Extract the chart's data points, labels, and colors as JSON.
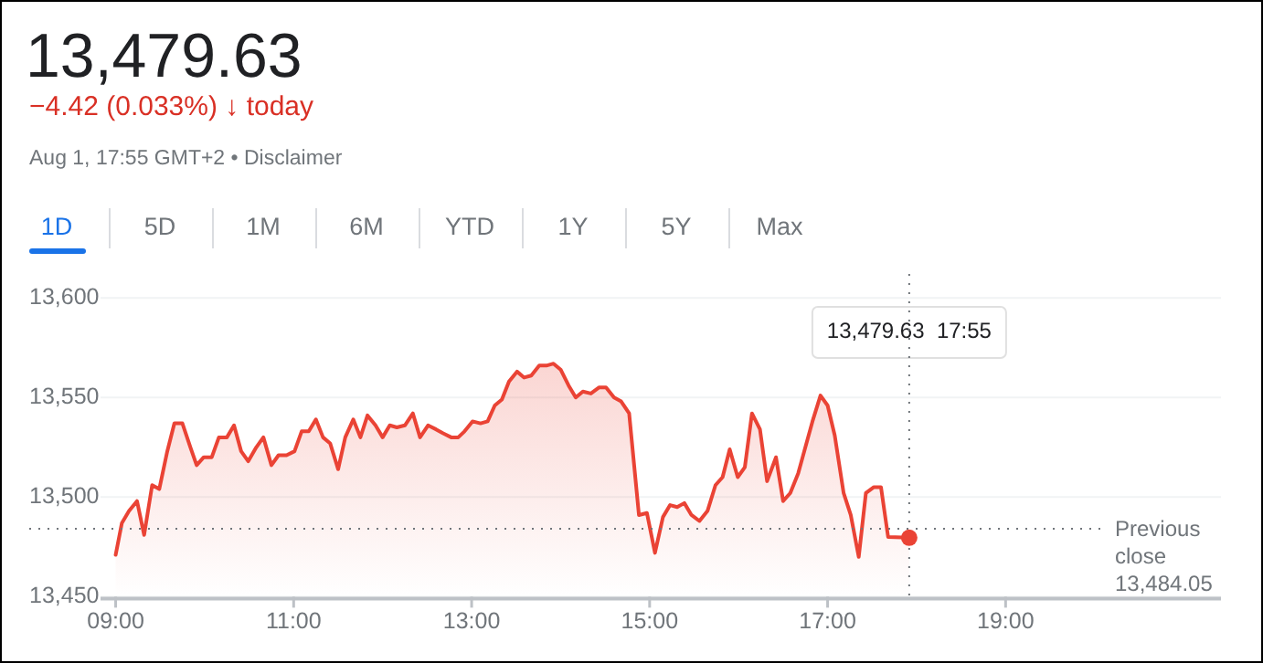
{
  "chart_data": {
    "type": "area",
    "title": "13,479.63",
    "subtitle": "−4.42 (0.033%) ↓ today",
    "annotations": [
      "Aug 1, 17:55 GMT+2 • Disclaimer",
      "1D",
      "5D",
      "1M",
      "6M",
      "YTD",
      "1Y",
      "5Y",
      "Max",
      "13,479.63  17:55"
    ],
    "x": [
      9.0,
      9.07,
      9.15,
      9.24,
      9.32,
      9.41,
      9.49,
      9.58,
      9.66,
      9.75,
      9.84,
      9.91,
      9.99,
      10.08,
      10.16,
      10.25,
      10.33,
      10.41,
      10.49,
      10.58,
      10.66,
      10.75,
      10.83,
      10.92,
      11.01,
      11.09,
      11.17,
      11.25,
      11.33,
      11.41,
      11.5,
      11.58,
      11.67,
      11.75,
      11.83,
      11.92,
      12.0,
      12.08,
      12.16,
      12.25,
      12.34,
      12.42,
      12.51,
      12.6,
      12.68,
      12.77,
      12.85,
      12.92,
      13.01,
      13.1,
      13.18,
      13.26,
      13.34,
      13.42,
      13.51,
      13.59,
      13.67,
      13.76,
      13.84,
      13.92,
      14.0,
      14.09,
      14.17,
      14.25,
      14.34,
      14.43,
      14.51,
      14.6,
      14.68,
      14.77,
      14.88,
      14.97,
      15.06,
      15.15,
      15.23,
      15.31,
      15.39,
      15.47,
      15.56,
      15.65,
      15.74,
      15.82,
      15.9,
      15.99,
      16.07,
      16.15,
      16.24,
      16.32,
      16.42,
      16.5,
      16.58,
      16.67,
      16.75,
      16.83,
      16.92,
      17.0,
      17.08,
      17.18,
      17.26,
      17.35,
      17.43,
      17.52,
      17.6,
      17.68,
      17.917
    ],
    "series": [
      {
        "color": "#ea4335",
        "values": [
          13471,
          13487,
          13493,
          13498,
          13481,
          13506,
          13504,
          13523,
          13537,
          13537,
          13525,
          13516,
          13520,
          13520,
          13530,
          13530,
          13536,
          13523,
          13518,
          13525,
          13530,
          13516,
          13521,
          13521,
          13523,
          13533,
          13533,
          13539,
          13530,
          13527,
          13514,
          13530,
          13539,
          13530,
          13541,
          13536,
          13530,
          13536,
          13535,
          13536,
          13542,
          13530,
          13536,
          13534,
          13532,
          13530,
          13530,
          13533,
          13538,
          13537,
          13538,
          13546,
          13549,
          13558,
          13563,
          13560,
          13561,
          13566,
          13566,
          13567,
          13564,
          13556,
          13550,
          13553,
          13552,
          13555,
          13555,
          13550,
          13548,
          13542,
          13491,
          13492,
          13472,
          13490,
          13496,
          13495,
          13497,
          13491,
          13488,
          13493,
          13506,
          13510,
          13524,
          13510,
          13515,
          13542,
          13534,
          13508,
          13520,
          13498,
          13502,
          13512,
          13525,
          13538,
          13551,
          13546,
          13531,
          13502,
          13491,
          13470,
          13502,
          13505,
          13505,
          13480,
          13479.63
        ]
      }
    ],
    "xlim": [
      8.83,
      21.42
    ],
    "xticks": [
      {
        "value": 9,
        "label": "09:00"
      },
      {
        "value": 11,
        "label": "11:00"
      },
      {
        "value": 13,
        "label": "13:00"
      },
      {
        "value": 15,
        "label": "15:00"
      },
      {
        "value": 17,
        "label": "17:00"
      },
      {
        "value": 19,
        "label": "19:00"
      }
    ],
    "ylim": [
      13450,
      13612
    ],
    "yticks": [
      {
        "value": 13450,
        "label": "13,450"
      },
      {
        "value": 13500,
        "label": "13,500"
      },
      {
        "value": 13550,
        "label": "13,550"
      },
      {
        "value": 13600,
        "label": "13,600"
      }
    ],
    "grid": "y",
    "ref_lines": [
      {
        "axis": "y",
        "value": 13484.05,
        "label": "Previous close 13,484.05",
        "line_style": "dotted",
        "color": "#70757a"
      },
      {
        "axis": "x",
        "value": 17.917,
        "line_style": "dotted",
        "color": "#70757a"
      }
    ]
  }
}
